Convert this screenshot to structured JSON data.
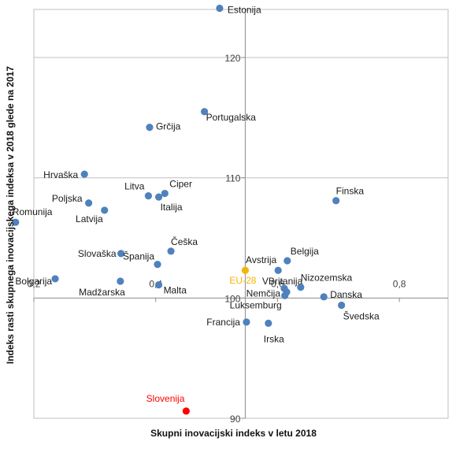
{
  "chart_data": {
    "type": "scatter",
    "xlabel": "Skupni inovacijski indeks v letu 2018",
    "ylabel": "Indeks rasti skupnega inovacijskega indeksa v 2018 glede na 2017",
    "xlim": [
      0.2,
      0.88
    ],
    "ylim": [
      90,
      124
    ],
    "cross_x": 0.547,
    "cross_y": 100,
    "x_ticks": [
      "0,2",
      "0,4",
      "0,6",
      "0,8"
    ],
    "x_tick_values": [
      0.2,
      0.4,
      0.6,
      0.8
    ],
    "y_ticks": [
      "90",
      "100",
      "110",
      "120"
    ],
    "y_tick_values": [
      90,
      100,
      110,
      120
    ],
    "grid": true,
    "colors": {
      "default": "#4f81bd",
      "eu": "#f2b600",
      "highlight": "#ff0000"
    },
    "points": [
      {
        "label": "Estonija",
        "x": 0.505,
        "y": 124.1,
        "color": "default"
      },
      {
        "label": "Portugalska",
        "x": 0.48,
        "y": 115.5,
        "color": "default"
      },
      {
        "label": "Grčija",
        "x": 0.39,
        "y": 114.2,
        "color": "default"
      },
      {
        "label": "Hrvaška",
        "x": 0.283,
        "y": 110.3,
        "color": "default"
      },
      {
        "label": "Poljska",
        "x": 0.29,
        "y": 107.9,
        "color": "default"
      },
      {
        "label": "Latvija",
        "x": 0.316,
        "y": 107.3,
        "color": "default"
      },
      {
        "label": "Litva",
        "x": 0.388,
        "y": 108.5,
        "color": "default"
      },
      {
        "label": "Ciper",
        "x": 0.415,
        "y": 108.7,
        "color": "default"
      },
      {
        "label": "Italija",
        "x": 0.405,
        "y": 108.4,
        "color": "default"
      },
      {
        "label": "Romunija",
        "x": 0.17,
        "y": 106.3,
        "color": "default"
      },
      {
        "label": "Finska",
        "x": 0.696,
        "y": 108.1,
        "color": "default"
      },
      {
        "label": "Slovaška",
        "x": 0.343,
        "y": 103.7,
        "color": "default"
      },
      {
        "label": "Češka",
        "x": 0.425,
        "y": 103.9,
        "color": "default"
      },
      {
        "label": "Španija",
        "x": 0.403,
        "y": 102.8,
        "color": "default"
      },
      {
        "label": "Belgija",
        "x": 0.616,
        "y": 103.1,
        "color": "default"
      },
      {
        "label": "Avstrija",
        "x": 0.601,
        "y": 102.3,
        "color": "default"
      },
      {
        "label": "EU-28",
        "x": 0.547,
        "y": 102.3,
        "color": "eu"
      },
      {
        "label": "Bolgarija",
        "x": 0.235,
        "y": 101.6,
        "color": "default"
      },
      {
        "label": "Madžarska",
        "x": 0.342,
        "y": 101.4,
        "color": "default"
      },
      {
        "label": "Malta",
        "x": 0.405,
        "y": 101.1,
        "color": "default"
      },
      {
        "label": "VBritanija",
        "x": 0.611,
        "y": 100.8,
        "color": "default"
      },
      {
        "label": "Nemčija",
        "x": 0.615,
        "y": 100.5,
        "color": "default"
      },
      {
        "label": "Nizozemska",
        "x": 0.638,
        "y": 100.9,
        "color": "default"
      },
      {
        "label": "Luksemburg",
        "x": 0.612,
        "y": 100.2,
        "color": "default"
      },
      {
        "label": "Danska",
        "x": 0.676,
        "y": 100.1,
        "color": "default"
      },
      {
        "label": "Švedska",
        "x": 0.705,
        "y": 99.4,
        "color": "default"
      },
      {
        "label": "Francija",
        "x": 0.549,
        "y": 98.0,
        "color": "default"
      },
      {
        "label": "Irska",
        "x": 0.585,
        "y": 97.9,
        "color": "default"
      },
      {
        "label": "Slovenija",
        "x": 0.45,
        "y": 90.6,
        "color": "highlight"
      }
    ]
  }
}
